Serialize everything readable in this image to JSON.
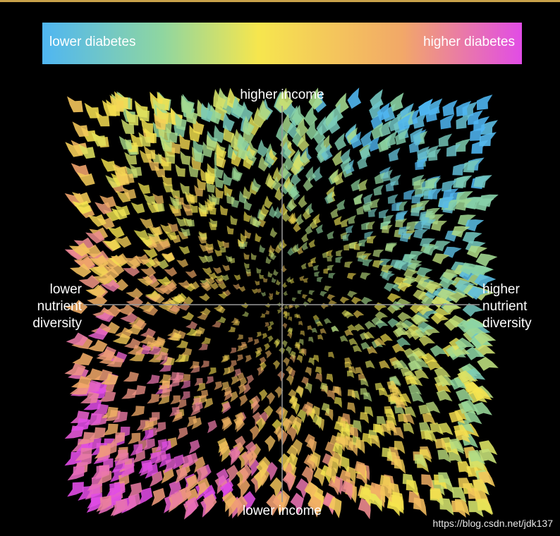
{
  "chart_data": {
    "type": "scatter",
    "title": "",
    "color_legend": {
      "low_label": "lower diabetes",
      "high_label": "higher diabetes",
      "colors": [
        "#4fb6f2",
        "#8fd6a0",
        "#f6e64e",
        "#f2a868",
        "#e14ce6"
      ]
    },
    "axes": {
      "top_label": "higher income",
      "bottom_label": "lower income",
      "left_label": [
        "lower",
        "nutrient",
        "diversity"
      ],
      "right_label": [
        "higher",
        "nutrient",
        "diversity"
      ],
      "axis_color": "#9a9a9a",
      "grid": false
    },
    "regions": [
      {
        "name": "higher income / higher nutrient diversity",
        "tendency": "lower diabetes"
      },
      {
        "name": "lower income / lower nutrient diversity",
        "tendency": "higher diabetes"
      }
    ]
  },
  "watermark": "https://blog.csdn.net/jdk137"
}
